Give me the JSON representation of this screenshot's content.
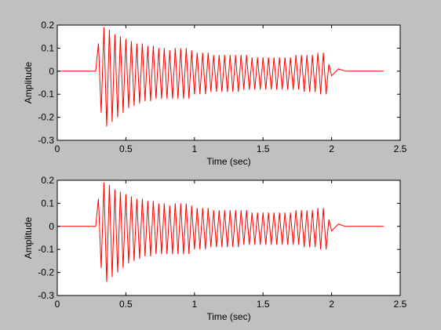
{
  "chart_data": [
    {
      "type": "line",
      "xlabel": "Time (sec)",
      "ylabel": "Amplitude",
      "color": "#ff0000",
      "xlim": [
        0,
        2.5
      ],
      "ylim": [
        -0.3,
        0.2
      ],
      "xticks": [
        0,
        0.5,
        1,
        1.5,
        2,
        2.5
      ],
      "yticks": [
        -0.3,
        -0.2,
        -0.1,
        0,
        0.1,
        0.2
      ],
      "x": [
        0,
        0.28,
        0.3,
        0.32,
        0.34,
        0.36,
        0.38,
        0.4,
        0.42,
        0.44,
        0.46,
        0.48,
        0.5,
        0.52,
        0.54,
        0.56,
        0.58,
        0.6,
        0.62,
        0.64,
        0.66,
        0.68,
        0.7,
        0.72,
        0.74,
        0.76,
        0.78,
        0.8,
        0.82,
        0.84,
        0.86,
        0.88,
        0.9,
        0.92,
        0.94,
        0.96,
        0.98,
        1.0,
        1.02,
        1.04,
        1.06,
        1.08,
        1.1,
        1.12,
        1.14,
        1.16,
        1.18,
        1.2,
        1.22,
        1.24,
        1.26,
        1.28,
        1.3,
        1.32,
        1.34,
        1.36,
        1.38,
        1.4,
        1.42,
        1.44,
        1.46,
        1.48,
        1.5,
        1.52,
        1.54,
        1.56,
        1.58,
        1.6,
        1.62,
        1.64,
        1.66,
        1.68,
        1.7,
        1.72,
        1.74,
        1.76,
        1.78,
        1.8,
        1.82,
        1.84,
        1.86,
        1.88,
        1.9,
        1.92,
        1.94,
        1.96,
        1.98,
        2.0,
        2.05,
        2.1,
        2.38
      ],
      "values": [
        0,
        0,
        0.12,
        -0.18,
        0.19,
        -0.24,
        0.18,
        -0.22,
        0.16,
        -0.2,
        0.15,
        -0.18,
        0.14,
        -0.16,
        0.13,
        -0.15,
        0.12,
        -0.14,
        0.12,
        -0.13,
        0.11,
        -0.13,
        0.11,
        -0.12,
        0.1,
        -0.12,
        0.1,
        -0.12,
        0.09,
        -0.12,
        0.1,
        -0.12,
        0.1,
        -0.12,
        0.1,
        -0.12,
        0.09,
        -0.1,
        0.08,
        -0.1,
        0.08,
        -0.1,
        0.08,
        -0.09,
        0.07,
        -0.09,
        0.07,
        -0.09,
        0.07,
        -0.09,
        0.07,
        -0.09,
        0.07,
        -0.09,
        0.07,
        -0.08,
        0.07,
        -0.08,
        0.06,
        -0.08,
        0.06,
        -0.08,
        0.06,
        -0.08,
        0.06,
        -0.08,
        0.06,
        -0.08,
        0.06,
        -0.08,
        0.06,
        -0.08,
        0.06,
        -0.08,
        0.07,
        -0.08,
        0.07,
        -0.09,
        0.07,
        -0.09,
        0.07,
        -0.09,
        0.08,
        -0.1,
        0.08,
        -0.1,
        0.03,
        -0.02,
        0.01,
        0,
        0
      ]
    },
    {
      "type": "line",
      "xlabel": "Time (sec)",
      "ylabel": "Amplitude",
      "color": "#ff0000",
      "xlim": [
        0,
        2.5
      ],
      "ylim": [
        -0.3,
        0.2
      ],
      "xticks": [
        0,
        0.5,
        1,
        1.5,
        2,
        2.5
      ],
      "yticks": [
        -0.3,
        -0.2,
        -0.1,
        0,
        0.1,
        0.2
      ],
      "x": [
        0,
        0.28,
        0.3,
        0.32,
        0.34,
        0.36,
        0.38,
        0.4,
        0.42,
        0.44,
        0.46,
        0.48,
        0.5,
        0.52,
        0.54,
        0.56,
        0.58,
        0.6,
        0.62,
        0.64,
        0.66,
        0.68,
        0.7,
        0.72,
        0.74,
        0.76,
        0.78,
        0.8,
        0.82,
        0.84,
        0.86,
        0.88,
        0.9,
        0.92,
        0.94,
        0.96,
        0.98,
        1.0,
        1.02,
        1.04,
        1.06,
        1.08,
        1.1,
        1.12,
        1.14,
        1.16,
        1.18,
        1.2,
        1.22,
        1.24,
        1.26,
        1.28,
        1.3,
        1.32,
        1.34,
        1.36,
        1.38,
        1.4,
        1.42,
        1.44,
        1.46,
        1.48,
        1.5,
        1.52,
        1.54,
        1.56,
        1.58,
        1.6,
        1.62,
        1.64,
        1.66,
        1.68,
        1.7,
        1.72,
        1.74,
        1.76,
        1.78,
        1.8,
        1.82,
        1.84,
        1.86,
        1.88,
        1.9,
        1.92,
        1.94,
        1.96,
        1.98,
        2.0,
        2.05,
        2.1,
        2.38
      ],
      "values": [
        0,
        0,
        0.12,
        -0.18,
        0.19,
        -0.24,
        0.18,
        -0.22,
        0.16,
        -0.2,
        0.15,
        -0.18,
        0.14,
        -0.16,
        0.13,
        -0.15,
        0.12,
        -0.14,
        0.12,
        -0.13,
        0.11,
        -0.13,
        0.11,
        -0.12,
        0.1,
        -0.12,
        0.1,
        -0.12,
        0.09,
        -0.12,
        0.1,
        -0.12,
        0.1,
        -0.12,
        0.1,
        -0.12,
        0.09,
        -0.1,
        0.08,
        -0.1,
        0.08,
        -0.1,
        0.08,
        -0.09,
        0.07,
        -0.09,
        0.07,
        -0.09,
        0.07,
        -0.09,
        0.07,
        -0.09,
        0.07,
        -0.09,
        0.07,
        -0.08,
        0.07,
        -0.08,
        0.06,
        -0.08,
        0.06,
        -0.08,
        0.06,
        -0.08,
        0.06,
        -0.08,
        0.06,
        -0.08,
        0.06,
        -0.08,
        0.06,
        -0.08,
        0.06,
        -0.08,
        0.07,
        -0.08,
        0.07,
        -0.09,
        0.07,
        -0.09,
        0.07,
        -0.09,
        0.08,
        -0.1,
        0.08,
        -0.1,
        0.03,
        -0.02,
        0.01,
        0,
        0
      ]
    }
  ]
}
